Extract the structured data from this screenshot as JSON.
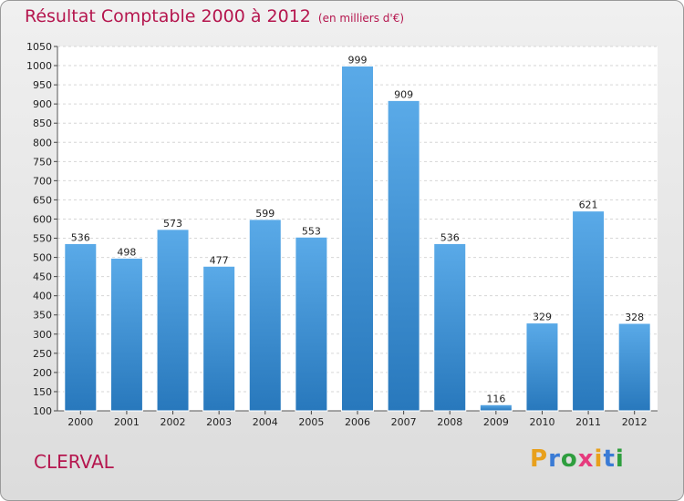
{
  "header": {
    "title": "Résultat Comptable 2000 à 2012",
    "subtitle": "(en milliers d'€)"
  },
  "commune": "CLERVAL",
  "logo": {
    "letters": [
      "P",
      "r",
      "o",
      "x",
      "i",
      "t",
      "i"
    ],
    "colors": [
      "#e8a01c",
      "#3a7bd5",
      "#2e9e3e",
      "#e63a7d",
      "#e8a01c",
      "#3a7bd5",
      "#2e9e3e"
    ]
  },
  "colors": {
    "bar_light": "#5aaae8",
    "bar_dark": "#2878bc",
    "accent": "#b5164e"
  },
  "chart_data": {
    "type": "bar",
    "title": "Résultat Comptable 2000 à 2012",
    "subtitle": "(en milliers d'€)",
    "categories": [
      "2000",
      "2001",
      "2002",
      "2003",
      "2004",
      "2005",
      "2006",
      "2007",
      "2008",
      "2009",
      "2010",
      "2011",
      "2012"
    ],
    "values": [
      536,
      498,
      573,
      477,
      599,
      553,
      999,
      909,
      536,
      116,
      329,
      621,
      328
    ],
    "value_labels": [
      "536",
      "498",
      "573",
      "477",
      "599",
      "553",
      "999",
      "909",
      "536",
      "116",
      "329",
      "621",
      "328"
    ],
    "ylim": [
      100,
      1050
    ],
    "yticks": [
      100,
      150,
      200,
      250,
      300,
      350,
      400,
      450,
      500,
      550,
      600,
      650,
      700,
      750,
      800,
      850,
      900,
      950,
      1000,
      1050
    ],
    "ytick_labels": [
      "100",
      "150",
      "200",
      "250",
      "300",
      "350",
      "400",
      "450",
      "500",
      "550",
      "600",
      "650",
      "700",
      "750",
      "800",
      "850",
      "900",
      "950",
      "1000",
      "1050"
    ],
    "grid": true,
    "legend": false
  }
}
